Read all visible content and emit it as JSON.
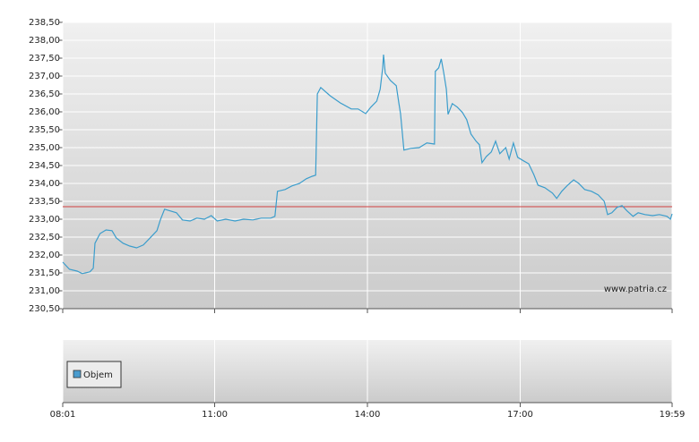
{
  "chart_data": [
    {
      "type": "line",
      "xlim": [
        481,
        1199
      ],
      "xticks": [
        {
          "value": 481,
          "label": "08:01"
        },
        {
          "value": 660,
          "label": "11:00"
        },
        {
          "value": 840,
          "label": "14:00"
        },
        {
          "value": 1020,
          "label": "17:00"
        },
        {
          "value": 1199,
          "label": "19:59"
        }
      ],
      "ylim": [
        230.5,
        238.5
      ],
      "yticks": [
        {
          "value": 230.5,
          "label": "230,50"
        },
        {
          "value": 231,
          "label": "231,00"
        },
        {
          "value": 231.5,
          "label": "231,50"
        },
        {
          "value": 232,
          "label": "232,00"
        },
        {
          "value": 232.5,
          "label": "232,50"
        },
        {
          "value": 233,
          "label": "233,00"
        },
        {
          "value": 233.5,
          "label": "233,50"
        },
        {
          "value": 234,
          "label": "234,00"
        },
        {
          "value": 234.5,
          "label": "234,50"
        },
        {
          "value": 235,
          "label": "235,00"
        },
        {
          "value": 235.5,
          "label": "235,50"
        },
        {
          "value": 236,
          "label": "236,00"
        },
        {
          "value": 236.5,
          "label": "236,50"
        },
        {
          "value": 237,
          "label": "237,00"
        },
        {
          "value": 237.5,
          "label": "237,50"
        },
        {
          "value": 238,
          "label": "238,00"
        },
        {
          "value": 238.5,
          "label": "238,50"
        }
      ],
      "grid": true,
      "reference_line": {
        "value": 233.35,
        "color": "#d04040"
      },
      "annotation": "www.patria.cz",
      "x": [
        481,
        489,
        498,
        504,
        513,
        517,
        519,
        525,
        532,
        539,
        544,
        552,
        560,
        568,
        576,
        584,
        592,
        596,
        601,
        608,
        615,
        622,
        631,
        639,
        648,
        656,
        663,
        673,
        684,
        694,
        705,
        715,
        726,
        731,
        734,
        743,
        751,
        760,
        768,
        775,
        779,
        781,
        785,
        796,
        808,
        821,
        829,
        838,
        844,
        851,
        855,
        858,
        859,
        861,
        867,
        874,
        877,
        879,
        883,
        891,
        901,
        910,
        919,
        920,
        924,
        927,
        930,
        933,
        935,
        940,
        946,
        952,
        957,
        962,
        968,
        972,
        975,
        980,
        986,
        991,
        996,
        1003,
        1007,
        1012,
        1017,
        1024,
        1030,
        1036,
        1041,
        1049,
        1058,
        1063,
        1069,
        1075,
        1083,
        1089,
        1096,
        1104,
        1112,
        1119,
        1123,
        1128,
        1134,
        1140,
        1146,
        1153,
        1159,
        1167,
        1176,
        1184,
        1193,
        1197,
        1199
      ],
      "series": [
        {
          "color": "#3b9dcc",
          "values": [
            231.8,
            231.6,
            231.55,
            231.48,
            231.53,
            231.63,
            232.33,
            232.6,
            232.7,
            232.68,
            232.48,
            232.33,
            232.25,
            232.2,
            232.28,
            232.48,
            232.68,
            232.98,
            233.28,
            233.23,
            233.18,
            232.98,
            232.95,
            233.03,
            233.0,
            233.1,
            232.95,
            233.0,
            232.95,
            233.0,
            232.98,
            233.03,
            233.03,
            233.08,
            233.78,
            233.83,
            233.93,
            234.0,
            234.13,
            234.2,
            234.23,
            236.5,
            236.68,
            236.45,
            236.25,
            236.08,
            236.08,
            235.95,
            236.13,
            236.3,
            236.63,
            237.23,
            237.6,
            237.08,
            236.88,
            236.73,
            236.25,
            235.95,
            234.93,
            234.98,
            235.0,
            235.13,
            235.1,
            237.13,
            237.23,
            237.48,
            237.08,
            236.63,
            235.93,
            236.23,
            236.13,
            235.98,
            235.78,
            235.38,
            235.18,
            235.08,
            234.58,
            234.75,
            234.88,
            235.18,
            234.83,
            235.0,
            234.68,
            235.13,
            234.73,
            234.63,
            234.55,
            234.25,
            233.95,
            233.88,
            233.73,
            233.58,
            233.78,
            233.93,
            234.1,
            234.0,
            233.83,
            233.78,
            233.68,
            233.5,
            233.13,
            233.18,
            233.33,
            233.38,
            233.23,
            233.08,
            233.18,
            233.13,
            233.1,
            233.13,
            233.08,
            233.0,
            233.15
          ]
        }
      ]
    },
    {
      "type": "bar",
      "series": [
        {
          "name": "Objem",
          "color": "#4a9ccf"
        }
      ]
    }
  ]
}
